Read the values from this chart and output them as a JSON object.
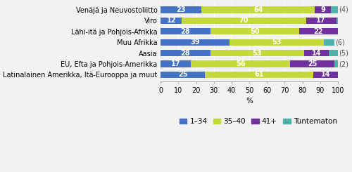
{
  "categories": [
    "Venäjä ja Neuvostoliitto",
    "Viro",
    "Lähi-itä ja Pohjois-Afrikka",
    "Muu Afrikka",
    "Aasia",
    "EU, Efta ja Pohjois-Amerikka",
    "Latinalainen Amerikka, Itä-Eurooppa ja muut"
  ],
  "series": {
    "1-34": [
      23,
      12,
      28,
      39,
      28,
      17,
      25
    ],
    "35-40": [
      64,
      70,
      50,
      53,
      53,
      56,
      61
    ],
    "41+": [
      9,
      17,
      22,
      0,
      14,
      25,
      14
    ],
    "Tuntematon": [
      4,
      1,
      0,
      6,
      5,
      2,
      0
    ]
  },
  "bar_labels": {
    "1-34": [
      "23",
      "12",
      "28",
      "39",
      "28",
      "17",
      "25"
    ],
    "35-40": [
      "64",
      "70",
      "50",
      "53",
      "53",
      "56",
      "61"
    ],
    "41+": [
      "9",
      "17",
      "22",
      null,
      "14",
      "25",
      "14"
    ],
    "Tuntematon": [
      "(4)",
      null,
      null,
      "(6)",
      "(5)",
      "(2)",
      null
    ]
  },
  "colors": {
    "1-34": "#4472c4",
    "35-40": "#c6d93a",
    "41+": "#7030a0",
    "Tuntematon": "#4db3a9"
  },
  "xlabel": "%",
  "xlim": [
    0,
    100
  ],
  "xticks": [
    0,
    10,
    20,
    30,
    40,
    50,
    60,
    70,
    80,
    90,
    100
  ],
  "legend_labels": [
    "1–34",
    "35–40",
    "41+",
    "Tuntematon"
  ],
  "bar_height": 0.6,
  "background_color": "#f2f2f2",
  "grid_color": "#ffffff",
  "text_color_inside": "#ffffff",
  "text_color_outside": "#555555",
  "label_fontsize": 7,
  "axis_fontsize": 7,
  "legend_fontsize": 7.5
}
